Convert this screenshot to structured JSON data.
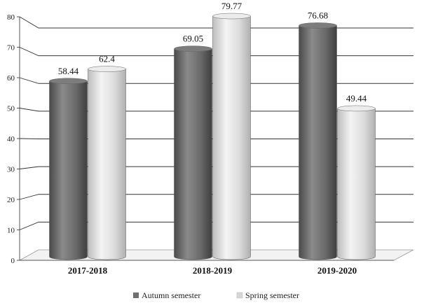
{
  "chart_data": {
    "type": "bar",
    "categories": [
      "2017-2018",
      "2018-2019",
      "2019-2020"
    ],
    "series": [
      {
        "name": "Autumn semester",
        "values": [
          58.44,
          69.05,
          76.68
        ],
        "color": "#6f6f6f"
      },
      {
        "name": "Spring semester",
        "values": [
          62.4,
          79.77,
          49.44
        ],
        "color": "#d6d6d6"
      }
    ],
    "data_labels": [
      [
        "58.44",
        "69.05",
        "76.68"
      ],
      [
        "62.4",
        "79.77",
        "49.44"
      ]
    ],
    "yticks": [
      "0",
      "10",
      "20",
      "30",
      "40",
      "50",
      "60",
      "70",
      "80"
    ],
    "ylim": [
      0,
      80
    ],
    "grid": true,
    "legend_position": "bottom-center",
    "style": "3d-cylinder"
  }
}
